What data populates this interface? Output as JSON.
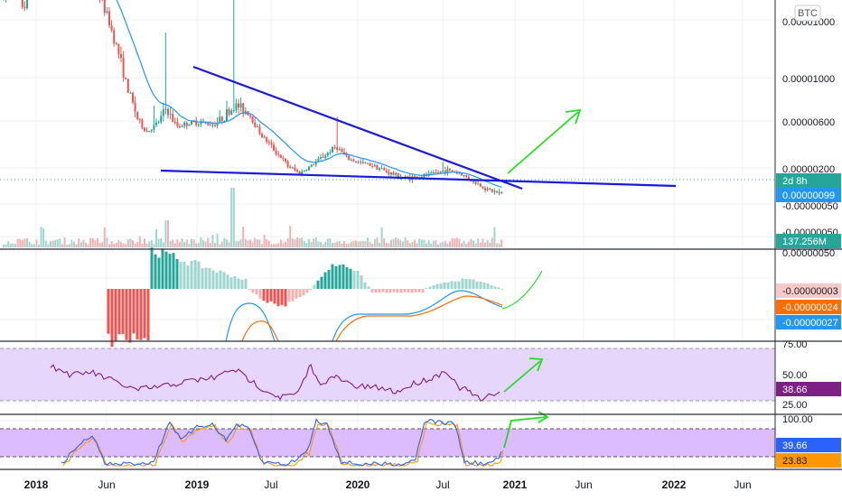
{
  "symbol_badge": "BTC",
  "colors": {
    "up": "#26a69a",
    "down": "#ef5350",
    "ema": "#2196f3",
    "trendline": "#1a1adc",
    "arrow": "#22dd22",
    "macd_line": "#2196f3",
    "signal_line": "#ff6d00",
    "rsi_line": "#7e1f86",
    "rsi_band": "#e6d6fb",
    "stoch_k": "#2962ff",
    "stoch_d": "#ff9800",
    "stoch_band": "#dcbcff"
  },
  "chart_data": [
    {
      "type": "candlestick",
      "scale": "log",
      "y_tick_labels": [
        "0.00001000",
        "0.00000600",
        "0.00000200",
        "-0.00000050"
      ],
      "x_tick_labels": [
        "2018",
        "Jun",
        "2019",
        "Jul",
        "2020",
        "Jul",
        "2021",
        "Jun",
        "2022",
        "Jun"
      ],
      "price_labels": [
        {
          "text": "2d 8h",
          "color": "#26a69a"
        },
        {
          "text": "0.00000099",
          "color": "#2196f3"
        }
      ],
      "annotations": [
        "descending trendline",
        "flat support line",
        "green upward arrow"
      ]
    },
    {
      "type": "bar",
      "name_shown": false,
      "label": "137.256M",
      "label_color": "#26a69a"
    },
    {
      "type": "histogram+line",
      "y_tick_labels": [
        "0.00000050"
      ],
      "value_labels": [
        {
          "text": "-0.00000003",
          "color": "#f8c9c9",
          "text_color": "#222222"
        },
        {
          "text": "-0.00000024",
          "color": "#ff6d00",
          "text_color": "#ffffff"
        },
        {
          "text": "-0.00000027",
          "color": "#2196f3",
          "text_color": "#ffffff"
        }
      ]
    },
    {
      "type": "line",
      "y_tick_labels": [
        "75.00",
        "50.00",
        "25.00"
      ],
      "band": [
        30,
        70
      ],
      "value_label": {
        "text": "38.66",
        "color": "#7e1f86"
      }
    },
    {
      "type": "line",
      "y_tick_labels": [
        "100.00"
      ],
      "band": [
        20,
        80
      ],
      "value_labels": [
        {
          "text": "39.66",
          "color": "#2962ff"
        },
        {
          "text": "23.83",
          "color": "#ff9800"
        }
      ]
    }
  ]
}
